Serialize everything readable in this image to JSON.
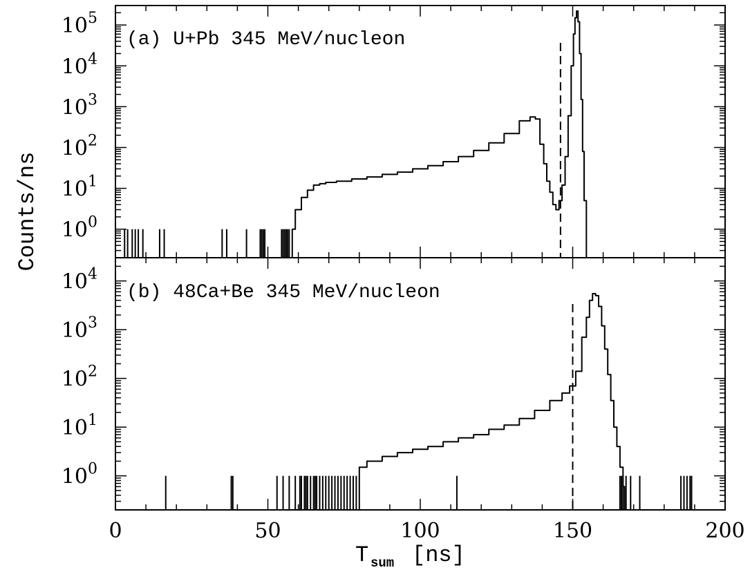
{
  "chart_data": [
    {
      "type": "line",
      "panel": "(a) U+Pb 345 MeV/nucleon",
      "label": "(a) U+Pb 345 MeV/nucleon",
      "xlabel_main": "T",
      "xlabel_sub": "sum",
      "xlabel_unit": "[ns]",
      "ylabel": "Counts/ns",
      "xlim": [
        0,
        200
      ],
      "ylim_log": [
        0.2,
        300000
      ],
      "yscale": "log",
      "y_ticks": [
        1,
        10,
        100,
        1000,
        10000,
        100000
      ],
      "y_tick_labels": [
        {
          "base": "10",
          "exp": "0"
        },
        {
          "base": "10",
          "exp": "1"
        },
        {
          "base": "10",
          "exp": "2"
        },
        {
          "base": "10",
          "exp": "3"
        },
        {
          "base": "10",
          "exp": "4"
        },
        {
          "base": "10",
          "exp": "5"
        }
      ],
      "dashed_line_x": 146,
      "series": [
        {
          "x": [
            58,
            60,
            62,
            64,
            66,
            68,
            70,
            75,
            80,
            85,
            90,
            95,
            100,
            105,
            110,
            115,
            120,
            125,
            130,
            135,
            137,
            138.5,
            140,
            141,
            142,
            143,
            144,
            145,
            146,
            147,
            148,
            149,
            150,
            150.5,
            151,
            151.5,
            152,
            152.5,
            153,
            153.5,
            154,
            155
          ],
          "y": [
            1,
            3,
            6,
            9,
            12,
            13,
            14,
            15,
            17,
            19,
            22,
            25,
            30,
            36,
            45,
            60,
            85,
            130,
            220,
            450,
            560,
            500,
            120,
            40,
            15,
            8,
            4,
            3,
            5,
            12,
            60,
            600,
            10000,
            60000,
            150000,
            220000,
            120000,
            20000,
            1500,
            80,
            5,
            0.2
          ]
        }
      ],
      "spikes_x": [
        3,
        4,
        5.5,
        6.5,
        7.5,
        9,
        14.5,
        16,
        35,
        36.5,
        43,
        47.5,
        48,
        48.5,
        49,
        54.5,
        55,
        55.5,
        56,
        56.5,
        57
      ]
    },
    {
      "type": "line",
      "panel": "(b) 48Ca+Be 345 MeV/nucleon",
      "label": "(b) 48Ca+Be 345 MeV/nucleon",
      "xlim": [
        0,
        200
      ],
      "ylim_log": [
        0.2,
        30000
      ],
      "yscale": "log",
      "y_ticks": [
        1,
        10,
        100,
        1000,
        10000
      ],
      "y_tick_labels": [
        {
          "base": "10",
          "exp": "0"
        },
        {
          "base": "10",
          "exp": "1"
        },
        {
          "base": "10",
          "exp": "2"
        },
        {
          "base": "10",
          "exp": "3"
        },
        {
          "base": "10",
          "exp": "4"
        }
      ],
      "x_ticks": [
        0,
        50,
        100,
        150,
        200
      ],
      "x_tick_labels": [
        "0",
        "50",
        "100",
        "150",
        "200"
      ],
      "dashed_line_x": 150,
      "series": [
        {
          "x": [
            80,
            85,
            90,
            95,
            100,
            105,
            110,
            115,
            120,
            125,
            130,
            135,
            140,
            145,
            148,
            150,
            152,
            154,
            155,
            156,
            157,
            158,
            159,
            160,
            161,
            162,
            163,
            164,
            165,
            166,
            167
          ],
          "y": [
            1.5,
            2,
            2.5,
            3,
            3.5,
            4,
            5,
            6,
            7,
            9,
            11,
            15,
            22,
            35,
            50,
            70,
            140,
            700,
            1800,
            4000,
            5500,
            5000,
            3000,
            1200,
            400,
            120,
            35,
            10,
            4,
            1.5,
            0.6
          ]
        }
      ],
      "spikes_x": [
        16.5,
        38,
        38.5,
        53,
        55,
        57,
        59,
        60.5,
        61,
        62,
        62.5,
        63,
        64,
        65,
        65.5,
        66,
        67,
        68,
        69,
        70,
        71,
        72,
        73,
        74,
        75,
        76,
        77,
        78,
        79,
        112,
        165.5,
        166,
        166.5,
        167.5,
        169,
        172,
        185.5,
        186.5,
        187.5,
        188.5,
        189
      ]
    }
  ]
}
